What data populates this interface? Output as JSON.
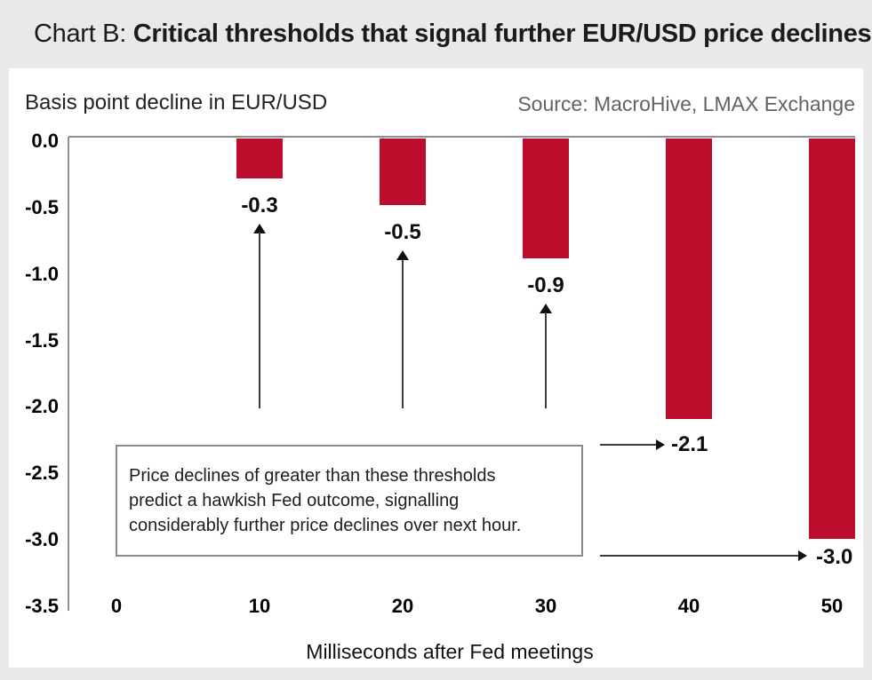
{
  "header": {
    "title_prefix": "Chart B: ",
    "title_bold": "Critical thresholds that signal further EUR/USD price declines"
  },
  "chart_data": {
    "type": "bar",
    "title": "Chart B: Critical thresholds that signal further EUR/USD price declines",
    "ylabel_note": "Basis point decline in EUR/USD",
    "source": "Source: MacroHive, LMAX Exchange",
    "xlabel": "Milliseconds after Fed meetings",
    "x": [
      10,
      20,
      30,
      40,
      50
    ],
    "values": [
      -0.3,
      -0.5,
      -0.9,
      -2.1,
      -3.0
    ],
    "bar_labels": [
      "-0.3",
      "-0.5",
      "-0.9",
      "-2.1",
      "-3.0"
    ],
    "x_ticks": [
      "0",
      "10",
      "20",
      "30",
      "40",
      "50"
    ],
    "y_ticks": [
      "0.0",
      "-0.5",
      "-1.0",
      "-1.5",
      "-2.0",
      "-2.5",
      "-3.0",
      "-3.5"
    ],
    "ylim": [
      -3.5,
      0
    ],
    "grid": false,
    "legend": "none",
    "bar_color": "#be0c2c",
    "annotation": "Price declines of greater than these thresholds predict a hawkish Fed outcome, signalling considerably further price declines over next hour.",
    "annotation_lines": [
      "Price declines of greater than these thresholds",
      "predict a hawkish Fed outcome, signalling",
      "considerably further price declines over next hour."
    ]
  },
  "colors": {
    "bar_red": "#be0c2c",
    "page_bg": "#e9e9e9",
    "card_bg": "#ffffff",
    "axis_gray": "#8f8f8f",
    "source_gray": "#636363"
  }
}
